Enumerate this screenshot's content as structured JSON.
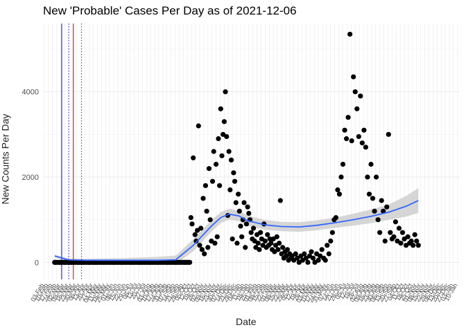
{
  "chart_data": {
    "type": "scatter",
    "title": "New 'Probable' Cases Per Day as of 2021-12-06",
    "xlabel": "Date",
    "ylabel": "New Counts Per Day",
    "ylim": [
      -400,
      5600
    ],
    "xlim": [
      "2020-02-01",
      "2022-01-15"
    ],
    "y_ticks": [
      0,
      2000,
      4000
    ],
    "grid": true,
    "background": "#ffffff",
    "grid_color": "#ebebeb",
    "colors": {
      "points": "#000000",
      "smooth": "#3366ff",
      "ribbon": "#c8c8c8",
      "vline_blue": "#0000cc",
      "vline_red": "#cc0000"
    },
    "vertical_lines": [
      {
        "date": "2020-03-04",
        "color": "#0000cc",
        "style": "solid"
      },
      {
        "date": "2020-03-16",
        "color": "#0000cc",
        "style": "dotted"
      },
      {
        "date": "2020-03-24",
        "color": "#cc0000",
        "style": "solid"
      },
      {
        "date": "2020-04-07",
        "color": "#cc0000",
        "style": "dotted"
      }
    ],
    "series": [
      {
        "points": [
          [
            "2020-02-21",
            0
          ],
          [
            "2020-03-01",
            0
          ],
          [
            "2020-03-10",
            0
          ],
          [
            "2020-03-20",
            0
          ],
          [
            "2020-04-01",
            0
          ],
          [
            "2020-04-10",
            0
          ],
          [
            "2020-04-20",
            0
          ],
          [
            "2020-05-01",
            0
          ],
          [
            "2020-05-15",
            0
          ],
          [
            "2020-06-01",
            0
          ],
          [
            "2020-06-15",
            0
          ],
          [
            "2020-07-01",
            0
          ],
          [
            "2020-07-15",
            0
          ],
          [
            "2020-08-01",
            0
          ],
          [
            "2020-08-15",
            0
          ],
          [
            "2020-09-01",
            0
          ],
          [
            "2020-09-15",
            0
          ],
          [
            "2020-10-01",
            0
          ],
          [
            "2020-10-09",
            0
          ],
          [
            "2020-10-11",
            1050
          ],
          [
            "2020-10-13",
            900
          ],
          [
            "2020-10-15",
            2450
          ],
          [
            "2020-10-18",
            650
          ],
          [
            "2020-10-20",
            500
          ],
          [
            "2020-10-22",
            750
          ],
          [
            "2020-10-24",
            3200
          ],
          [
            "2020-10-26",
            400
          ],
          [
            "2020-10-28",
            800
          ],
          [
            "2020-10-30",
            300
          ],
          [
            "2020-11-01",
            1500
          ],
          [
            "2020-11-03",
            200
          ],
          [
            "2020-11-05",
            1800
          ],
          [
            "2020-11-07",
            1200
          ],
          [
            "2020-11-09",
            350
          ],
          [
            "2020-11-11",
            2200
          ],
          [
            "2020-11-13",
            1000
          ],
          [
            "2020-11-15",
            500
          ],
          [
            "2020-11-17",
            1900
          ],
          [
            "2020-11-19",
            2600
          ],
          [
            "2020-11-21",
            450
          ],
          [
            "2020-11-23",
            2300
          ],
          [
            "2020-11-25",
            600
          ],
          [
            "2020-11-27",
            2900
          ],
          [
            "2020-11-29",
            1800
          ],
          [
            "2020-12-01",
            3600
          ],
          [
            "2020-12-03",
            2500
          ],
          [
            "2020-12-05",
            3000
          ],
          [
            "2020-12-07",
            3300
          ],
          [
            "2020-12-09",
            4000
          ],
          [
            "2020-12-11",
            2950
          ],
          [
            "2020-12-13",
            1100
          ],
          [
            "2020-12-15",
            2600
          ],
          [
            "2020-12-17",
            1700
          ],
          [
            "2020-12-19",
            2400
          ],
          [
            "2020-12-21",
            550
          ],
          [
            "2020-12-23",
            2100
          ],
          [
            "2020-12-25",
            1900
          ],
          [
            "2020-12-27",
            1400
          ],
          [
            "2020-12-29",
            450
          ],
          [
            "2020-12-31",
            1600
          ],
          [
            "2021-01-02",
            1200
          ],
          [
            "2021-01-04",
            850
          ],
          [
            "2021-01-06",
            600
          ],
          [
            "2021-01-08",
            1000
          ],
          [
            "2021-01-10",
            1400
          ],
          [
            "2021-01-12",
            350
          ],
          [
            "2021-01-14",
            900
          ],
          [
            "2021-01-16",
            1300
          ],
          [
            "2021-01-18",
            1150
          ],
          [
            "2021-01-20",
            1000
          ],
          [
            "2021-01-22",
            700
          ],
          [
            "2021-01-24",
            550
          ],
          [
            "2021-01-26",
            800
          ],
          [
            "2021-01-28",
            500
          ],
          [
            "2021-01-30",
            350
          ],
          [
            "2021-02-01",
            650
          ],
          [
            "2021-02-03",
            450
          ],
          [
            "2021-02-05",
            300
          ],
          [
            "2021-02-07",
            700
          ],
          [
            "2021-02-09",
            550
          ],
          [
            "2021-02-11",
            400
          ],
          [
            "2021-02-13",
            900
          ],
          [
            "2021-02-15",
            500
          ],
          [
            "2021-02-17",
            350
          ],
          [
            "2021-02-19",
            650
          ],
          [
            "2021-02-21",
            400
          ],
          [
            "2021-02-23",
            550
          ],
          [
            "2021-02-25",
            450
          ],
          [
            "2021-02-27",
            300
          ],
          [
            "2021-03-01",
            550
          ],
          [
            "2021-03-03",
            250
          ],
          [
            "2021-03-05",
            400
          ],
          [
            "2021-03-07",
            600
          ],
          [
            "2021-03-09",
            300
          ],
          [
            "2021-03-11",
            450
          ],
          [
            "2021-03-13",
            1450
          ],
          [
            "2021-03-15",
            200
          ],
          [
            "2021-03-17",
            350
          ],
          [
            "2021-03-19",
            100
          ],
          [
            "2021-03-21",
            250
          ],
          [
            "2021-03-23",
            150
          ],
          [
            "2021-03-25",
            300
          ],
          [
            "2021-03-27",
            50
          ],
          [
            "2021-03-29",
            200
          ],
          [
            "2021-03-31",
            100
          ],
          [
            "2021-04-02",
            150
          ],
          [
            "2021-04-05",
            50
          ],
          [
            "2021-04-08",
            200
          ],
          [
            "2021-04-11",
            100
          ],
          [
            "2021-04-14",
            0
          ],
          [
            "2021-04-17",
            150
          ],
          [
            "2021-04-20",
            50
          ],
          [
            "2021-04-23",
            200
          ],
          [
            "2021-04-26",
            100
          ],
          [
            "2021-04-29",
            0
          ],
          [
            "2021-05-02",
            150
          ],
          [
            "2021-05-05",
            250
          ],
          [
            "2021-05-08",
            100
          ],
          [
            "2021-05-11",
            0
          ],
          [
            "2021-05-14",
            200
          ],
          [
            "2021-05-17",
            50
          ],
          [
            "2021-05-20",
            150
          ],
          [
            "2021-05-23",
            300
          ],
          [
            "2021-05-26",
            100
          ],
          [
            "2021-05-29",
            50
          ],
          [
            "2021-06-01",
            400
          ],
          [
            "2021-06-04",
            200
          ],
          [
            "2021-06-07",
            500
          ],
          [
            "2021-06-10",
            700
          ],
          [
            "2021-06-13",
            1000
          ],
          [
            "2021-06-16",
            1050
          ],
          [
            "2021-06-19",
            1700
          ],
          [
            "2021-06-22",
            1600
          ],
          [
            "2021-06-25",
            2000
          ],
          [
            "2021-06-28",
            2300
          ],
          [
            "2021-07-01",
            3100
          ],
          [
            "2021-07-04",
            2900
          ],
          [
            "2021-07-07",
            3400
          ],
          [
            "2021-07-10",
            5350
          ],
          [
            "2021-07-13",
            2850
          ],
          [
            "2021-07-16",
            4350
          ],
          [
            "2021-07-19",
            4000
          ],
          [
            "2021-07-22",
            3600
          ],
          [
            "2021-07-25",
            2950
          ],
          [
            "2021-07-28",
            3900
          ],
          [
            "2021-07-31",
            2800
          ],
          [
            "2021-08-03",
            3100
          ],
          [
            "2021-08-06",
            2700
          ],
          [
            "2021-08-09",
            2000
          ],
          [
            "2021-08-12",
            1600
          ],
          [
            "2021-08-15",
            2300
          ],
          [
            "2021-08-18",
            1500
          ],
          [
            "2021-08-21",
            1200
          ],
          [
            "2021-08-24",
            2000
          ],
          [
            "2021-08-27",
            1000
          ],
          [
            "2021-08-30",
            700
          ],
          [
            "2021-09-02",
            1450
          ],
          [
            "2021-09-05",
            1200
          ],
          [
            "2021-09-08",
            500
          ],
          [
            "2021-09-11",
            1300
          ],
          [
            "2021-09-14",
            3000
          ],
          [
            "2021-09-17",
            700
          ],
          [
            "2021-09-20",
            550
          ],
          [
            "2021-09-23",
            600
          ],
          [
            "2021-09-26",
            950
          ],
          [
            "2021-09-29",
            500
          ],
          [
            "2021-10-02",
            800
          ],
          [
            "2021-10-05",
            450
          ],
          [
            "2021-10-08",
            700
          ],
          [
            "2021-10-11",
            550
          ],
          [
            "2021-10-14",
            400
          ],
          [
            "2021-10-17",
            600
          ],
          [
            "2021-10-20",
            450
          ],
          [
            "2021-10-23",
            500
          ],
          [
            "2021-10-26",
            400
          ],
          [
            "2021-10-29",
            650
          ],
          [
            "2021-11-01",
            500
          ],
          [
            "2021-11-04",
            400
          ]
        ]
      }
    ],
    "smooth": [
      [
        "2020-02-21",
        150
      ],
      [
        "2020-03-15",
        60
      ],
      [
        "2020-04-15",
        50
      ],
      [
        "2020-06-15",
        50
      ],
      [
        "2020-08-15",
        50
      ],
      [
        "2020-09-15",
        60
      ],
      [
        "2020-10-15",
        400
      ],
      [
        "2020-11-15",
        850
      ],
      [
        "2020-12-01",
        1050
      ],
      [
        "2020-12-15",
        1130
      ],
      [
        "2021-01-01",
        1090
      ],
      [
        "2021-01-15",
        980
      ],
      [
        "2021-02-15",
        880
      ],
      [
        "2021-03-15",
        840
      ],
      [
        "2021-04-15",
        830
      ],
      [
        "2021-05-15",
        870
      ],
      [
        "2021-06-15",
        930
      ],
      [
        "2021-07-15",
        1000
      ],
      [
        "2021-08-15",
        1080
      ],
      [
        "2021-09-15",
        1180
      ],
      [
        "2021-10-15",
        1320
      ],
      [
        "2021-11-04",
        1450
      ]
    ],
    "ribbon_halfwidth": [
      [
        "2020-02-21",
        30
      ],
      [
        "2020-06-01",
        40
      ],
      [
        "2020-09-15",
        100
      ],
      [
        "2020-10-15",
        140
      ],
      [
        "2020-12-01",
        130
      ],
      [
        "2021-03-15",
        110
      ],
      [
        "2021-06-15",
        120
      ],
      [
        "2021-09-15",
        180
      ],
      [
        "2021-11-04",
        290
      ]
    ]
  }
}
